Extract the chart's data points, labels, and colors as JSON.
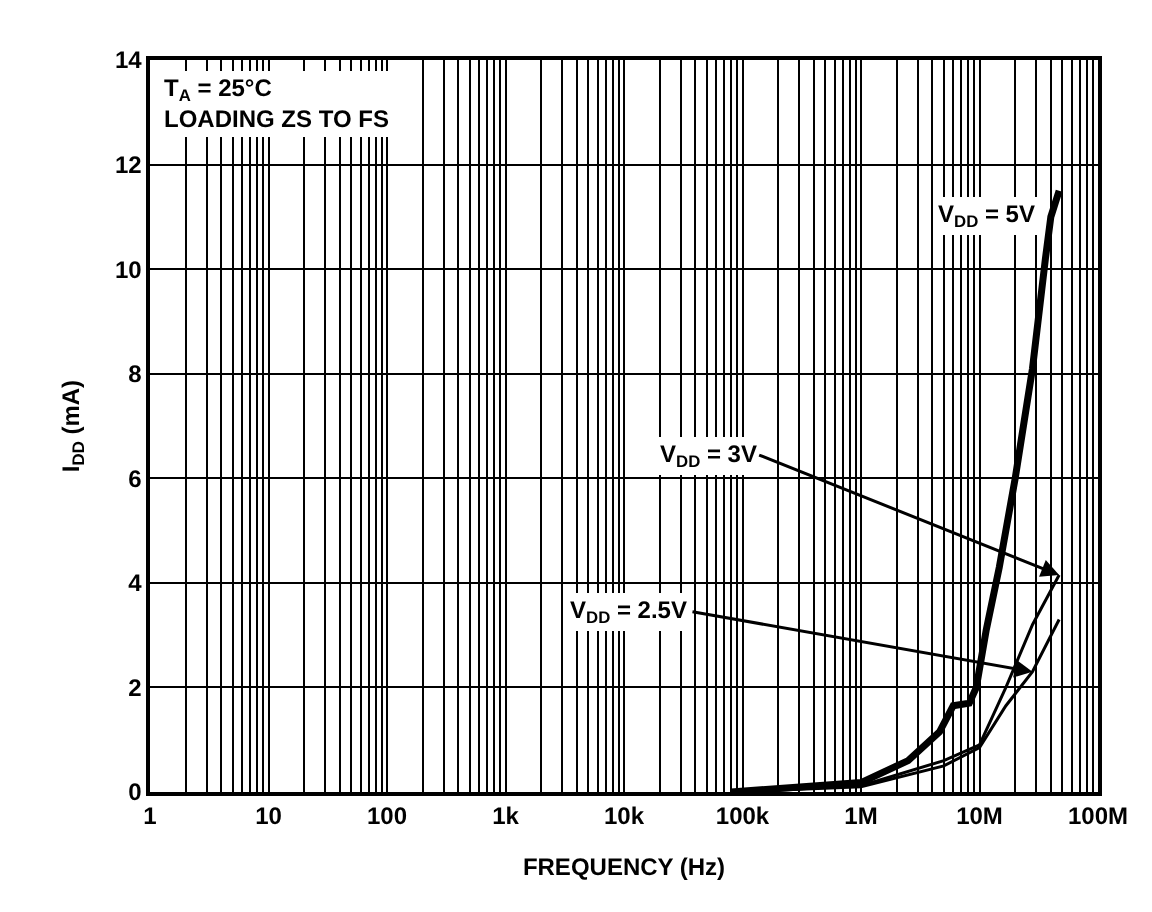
{
  "chart_data": {
    "type": "line",
    "xlabel": "FREQUENCY (Hz)",
    "ylabel": "I$_{DD}$ (mA)",
    "log": "x",
    "xlim": [
      1,
      100000000
    ],
    "xticks": [
      1,
      10,
      100,
      {
        "value": 1000,
        "label": "1k"
      },
      {
        "value": 10000,
        "label": "10k"
      },
      {
        "value": 100000,
        "label": "100k"
      },
      {
        "value": 1000000,
        "label": "1M"
      },
      {
        "value": 10000000,
        "label": "10M"
      },
      {
        "value": 100000000,
        "label": "100M"
      }
    ],
    "ylim": [
      0,
      14
    ],
    "yticks": [
      0,
      2,
      4,
      6,
      8,
      10,
      12,
      14
    ],
    "grid": true,
    "legend": false,
    "marker": "none",
    "line_style": "solid",
    "annotations": [
      "T$_{A}$ = 25°C\nLOADING ZS TO FS"
    ],
    "series": [
      {
        "name": "V$_{DD}$ = 5V",
        "color": "#000000",
        "x": [
          80000,
          1000000,
          2500000,
          4600000,
          6000000,
          8200000,
          9400000,
          11400000,
          14700000,
          20000000,
          28000000,
          36000000,
          40000000,
          47000000
        ],
        "values": [
          0,
          0.18,
          0.6,
          1.15,
          1.65,
          1.7,
          2.0,
          3.1,
          4.3,
          6.0,
          8.1,
          10.2,
          11.0,
          11.5
        ]
      },
      {
        "name": "V$_{DD}$ = 3V",
        "color": "#000000",
        "x": [
          80000,
          1000000,
          5000000,
          10000000,
          16700000,
          28000000,
          47000000
        ],
        "values": [
          0,
          0.12,
          0.6,
          0.9,
          2.0,
          3.2,
          4.15
        ]
      },
      {
        "name": "V$_{DD}$ = 2.5V",
        "color": "#000000",
        "x": [
          80000,
          1000000,
          5000000,
          10000000,
          16700000,
          28000000,
          47000000
        ],
        "values": [
          0,
          0.1,
          0.5,
          0.85,
          1.65,
          2.3,
          3.3
        ]
      }
    ]
  }
}
